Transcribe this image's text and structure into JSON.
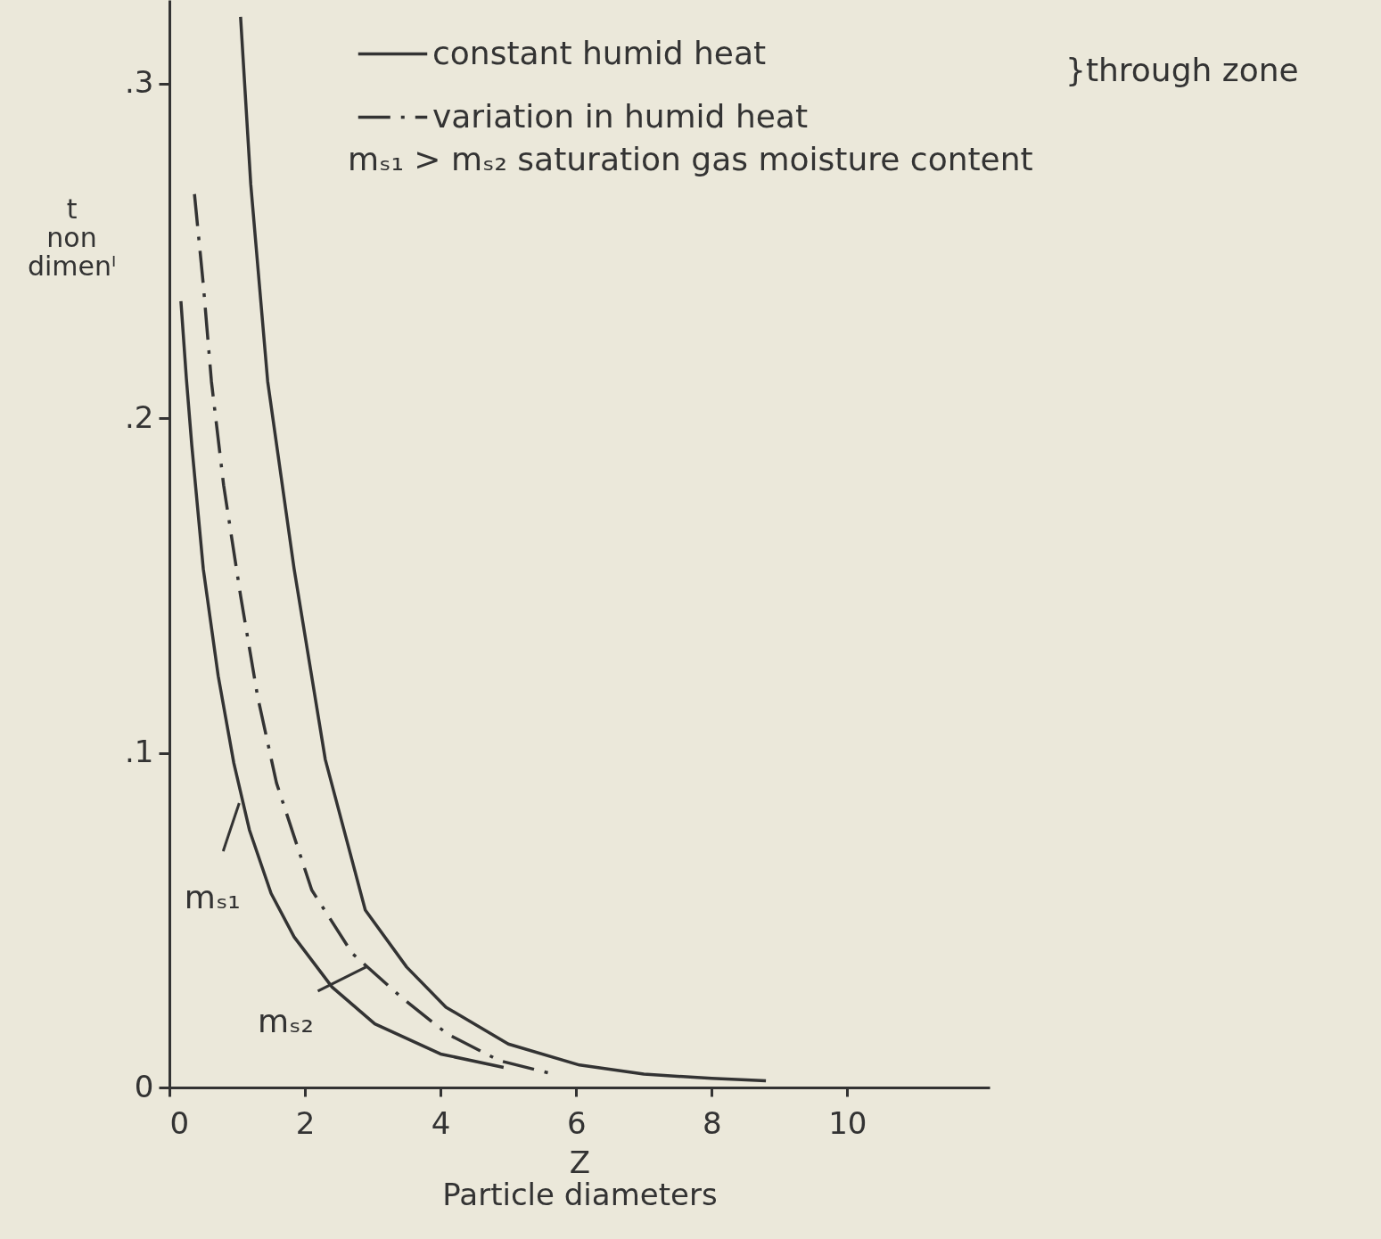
{
  "chart_data": {
    "type": "line",
    "xlabel": "Z\nParticle diameters",
    "ylabel": "t\nnon\ndimenˡ",
    "xlim": [
      0,
      12.1
    ],
    "ylim": [
      0,
      0.325
    ],
    "xticks": [
      0,
      2,
      4,
      6,
      8,
      10
    ],
    "yticks": [
      0,
      {
        "value": 0.1,
        "label": ".1"
      },
      {
        "value": 0.2,
        "label": ".2"
      },
      {
        "value": 0.3,
        "label": ".3"
      }
    ],
    "grid": false,
    "legend": "top right",
    "marker": "none",
    "series": [
      {
        "name": "constant humid heat",
        "color": "#333333",
        "line_style": "solid",
        "x": [
          1.05,
          1.2,
          1.45,
          1.84,
          2.3,
          2.89,
          3.5,
          4.08,
          5.0,
          6.05,
          7.0,
          8.0,
          8.8
        ],
        "values": [
          0.32,
          0.27,
          0.211,
          0.155,
          0.098,
          0.053,
          0.036,
          0.024,
          0.013,
          0.0067,
          0.004,
          0.0027,
          0.002
        ]
      },
      {
        "name": "variation in humid heat",
        "color": "#333333",
        "line_style": "dashdot",
        "x": [
          0.37,
          0.5,
          0.62,
          0.8,
          1.05,
          1.3,
          1.58,
          2.1,
          2.7,
          3.42,
          4.1,
          4.87,
          5.66
        ],
        "values": [
          0.267,
          0.24,
          0.211,
          0.18,
          0.147,
          0.117,
          0.091,
          0.059,
          0.04,
          0.027,
          0.016,
          0.008,
          0.004
        ]
      },
      {
        "color": "#333333",
        "line_style": "solid",
        "x": [
          0.17,
          0.25,
          0.33,
          0.5,
          0.72,
          0.95,
          1.18,
          1.5,
          1.84,
          2.4,
          3.03,
          4.0,
          4.93
        ],
        "values": [
          0.235,
          0.212,
          0.192,
          0.155,
          0.123,
          0.097,
          0.077,
          0.058,
          0.045,
          0.03,
          0.019,
          0.01,
          0.006
        ]
      }
    ],
    "annotations": [
      {
        "text": "mₛ₁",
        "x": 1.03,
        "y": 0.085
      },
      {
        "text": "mₛ₂",
        "x": 2.9,
        "y": 0.036
      },
      "}through zone",
      "mₛ₁ > mₛ₂  saturation gas moisture content"
    ]
  }
}
